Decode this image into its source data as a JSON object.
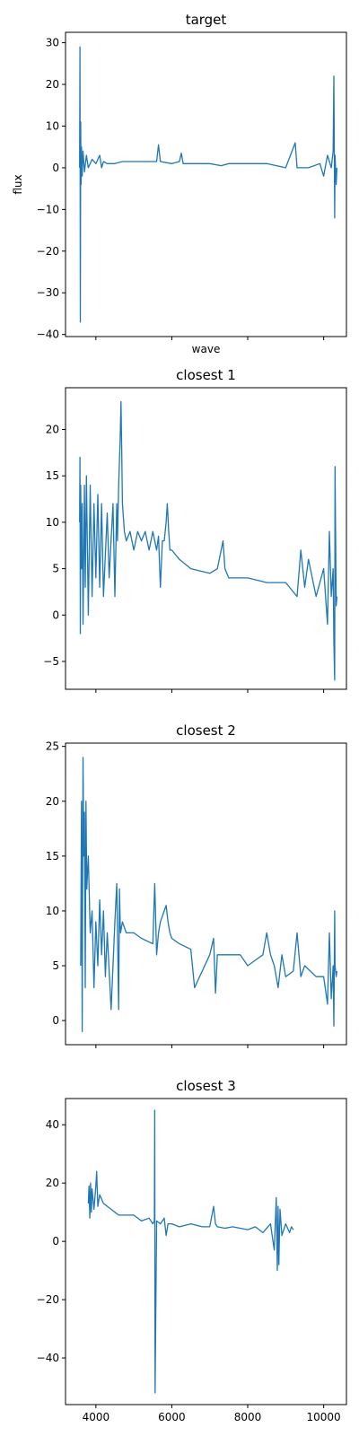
{
  "chart_data": [
    {
      "type": "line",
      "title": "target",
      "xlabel": "wave",
      "ylabel": "flux",
      "xlim": [
        3200,
        10600
      ],
      "ylim": [
        -40.5,
        32.5
      ],
      "xticks": [
        4000,
        6000,
        8000,
        10000
      ],
      "show_xtick_labels": false,
      "yticks": [
        -40,
        -30,
        -20,
        -10,
        0,
        10,
        20,
        30
      ],
      "ytick_labels": [
        "−40",
        "−30",
        "−20",
        "−10",
        "0",
        "10",
        "20",
        "30"
      ],
      "series": [
        {
          "color": "#1f77b4",
          "x": [
            3570,
            3580,
            3590,
            3600,
            3610,
            3620,
            3640,
            3660,
            3700,
            3750,
            3800,
            3900,
            4000,
            4100,
            4150,
            4200,
            4300,
            4500,
            4700,
            5000,
            5300,
            5600,
            5650,
            5700,
            6000,
            6200,
            6250,
            6300,
            6500,
            7000,
            7300,
            7500,
            8000,
            8500,
            9000,
            9250,
            9300,
            9600,
            9900,
            10000,
            10100,
            10200,
            10250,
            10270,
            10290,
            10300,
            10330,
            10350
          ],
          "y": [
            0,
            29,
            -37,
            11,
            -4,
            5,
            -2,
            4,
            -1,
            3,
            0,
            2,
            1,
            3,
            0,
            1.5,
            1,
            1,
            1.5,
            1.5,
            1.5,
            1.5,
            5.5,
            1.5,
            1,
            1.5,
            3.5,
            1,
            1,
            1,
            0.5,
            1,
            1,
            1,
            0,
            6,
            0,
            0,
            1,
            -2,
            3,
            0,
            4,
            22,
            -12,
            3,
            -4,
            0
          ]
        }
      ]
    },
    {
      "type": "line",
      "title": "closest 1",
      "xlabel": "",
      "ylabel": "",
      "xlim": [
        3200,
        10600
      ],
      "ylim": [
        -8,
        24.5
      ],
      "xticks": [
        4000,
        6000,
        8000,
        10000
      ],
      "show_xtick_labels": false,
      "yticks": [
        -5,
        0,
        5,
        10,
        15,
        20
      ],
      "ytick_labels": [
        "−5",
        "0",
        "5",
        "10",
        "15",
        "20"
      ],
      "series": [
        {
          "color": "#1f77b4",
          "x": [
            3570,
            3580,
            3590,
            3600,
            3620,
            3640,
            3660,
            3700,
            3720,
            3750,
            3800,
            3850,
            3900,
            3950,
            4000,
            4050,
            4100,
            4150,
            4200,
            4300,
            4350,
            4450,
            4500,
            4550,
            4570,
            4600,
            4640,
            4660,
            4680,
            4700,
            4750,
            4800,
            4900,
            5000,
            5100,
            5200,
            5300,
            5400,
            5500,
            5600,
            5650,
            5700,
            5750,
            5800,
            5850,
            5880,
            5920,
            5950,
            6000,
            6200,
            6500,
            7000,
            7200,
            7300,
            7350,
            7400,
            7500,
            8000,
            8500,
            9000,
            9300,
            9400,
            9500,
            9600,
            9800,
            10000,
            10100,
            10150,
            10200,
            10250,
            10270,
            10290,
            10300,
            10330,
            10350
          ],
          "y": [
            10,
            17,
            -2,
            14,
            5,
            12,
            -1,
            14,
            3,
            15,
            0,
            14,
            2,
            12,
            4,
            13,
            3,
            12,
            2,
            11,
            4,
            12,
            2,
            12,
            8,
            14,
            19,
            23,
            18,
            12,
            9,
            8,
            9,
            7,
            9,
            8,
            9,
            7,
            9,
            7,
            8.5,
            3,
            8,
            8,
            10,
            12,
            9,
            7,
            7,
            6,
            5,
            4.5,
            5,
            7,
            8,
            5,
            4,
            4,
            3.5,
            3.5,
            2,
            7,
            3,
            6,
            2,
            5,
            -1,
            9,
            2,
            5,
            -3,
            -7,
            16,
            1,
            2
          ]
        }
      ]
    },
    {
      "type": "line",
      "title": "closest 2",
      "xlabel": "",
      "ylabel": "",
      "xlim": [
        3200,
        10600
      ],
      "ylim": [
        -2.2,
        25.3
      ],
      "xticks": [
        4000,
        6000,
        8000,
        10000
      ],
      "show_xtick_labels": false,
      "yticks": [
        0,
        5,
        10,
        15,
        20,
        25
      ],
      "ytick_labels": [
        "0",
        "5",
        "10",
        "15",
        "20",
        "25"
      ],
      "series": [
        {
          "color": "#1f77b4",
          "x": [
            3600,
            3620,
            3640,
            3660,
            3680,
            3700,
            3720,
            3740,
            3760,
            3800,
            3850,
            3900,
            3950,
            4000,
            4050,
            4100,
            4150,
            4200,
            4250,
            4300,
            4400,
            4500,
            4550,
            4600,
            4620,
            4640,
            4650,
            4700,
            4800,
            5000,
            5200,
            5500,
            5550,
            5600,
            5650,
            5700,
            5800,
            5850,
            5900,
            5950,
            6000,
            6200,
            6500,
            6600,
            7000,
            7100,
            7150,
            7200,
            7500,
            7800,
            8000,
            8200,
            8400,
            8500,
            8600,
            8700,
            8800,
            8900,
            9000,
            9200,
            9300,
            9400,
            9500,
            9800,
            10000,
            10100,
            10150,
            10200,
            10250,
            10270,
            10290,
            10300,
            10330,
            10350
          ],
          "y": [
            5,
            20,
            -1,
            24,
            15,
            19,
            3,
            20,
            12,
            15,
            8,
            10,
            3,
            9,
            5,
            11,
            6,
            10,
            4,
            8,
            1,
            9,
            12.5,
            1,
            12,
            9,
            8,
            9,
            8,
            8,
            7.5,
            7,
            12.5,
            6,
            8,
            9,
            10,
            10.5,
            9,
            8,
            7.5,
            7,
            6.5,
            3,
            6,
            7.5,
            2.5,
            6,
            6,
            6,
            5,
            5.5,
            6,
            8,
            6,
            5,
            3,
            6,
            4,
            4.5,
            8,
            4,
            5,
            4,
            4,
            1.5,
            8,
            2,
            5,
            -0.5,
            10,
            5,
            4,
            4.5
          ]
        }
      ]
    },
    {
      "type": "line",
      "title": "closest 3",
      "xlabel": "",
      "ylabel": "",
      "xlim": [
        3200,
        10600
      ],
      "ylim": [
        -56,
        49
      ],
      "xticks": [
        4000,
        6000,
        8000,
        10000
      ],
      "show_xtick_labels": true,
      "xtick_labels": [
        "4000",
        "6000",
        "8000",
        "10000"
      ],
      "yticks": [
        -40,
        -20,
        0,
        20,
        40
      ],
      "ytick_labels": [
        "−40",
        "−20",
        "0",
        "20",
        "40"
      ],
      "series": [
        {
          "color": "#1f77b4",
          "x": [
            3800,
            3820,
            3840,
            3860,
            3880,
            3900,
            3950,
            4000,
            4020,
            4050,
            4100,
            4200,
            4400,
            4600,
            4800,
            5000,
            5200,
            5400,
            5500,
            5540,
            5550,
            5560,
            5600,
            5700,
            5800,
            5850,
            5900,
            6000,
            6200,
            6500,
            6800,
            7000,
            7100,
            7150,
            7200,
            7400,
            7600,
            8000,
            8200,
            8400,
            8600,
            8700,
            8750,
            8780,
            8800,
            8820,
            8850,
            8900,
            9000,
            9100,
            9150,
            9200
          ],
          "y": [
            13,
            19,
            8,
            20,
            10,
            18,
            11,
            19,
            24,
            12,
            16,
            13,
            11,
            9,
            9,
            9,
            7,
            8,
            6,
            7,
            45,
            -52,
            7,
            6,
            8,
            2,
            6,
            6,
            5,
            6,
            5,
            5,
            12,
            6,
            5,
            4.5,
            5,
            4,
            5,
            3,
            6,
            -3,
            15,
            -10,
            12,
            -8,
            11,
            2,
            6,
            3,
            5,
            4
          ]
        }
      ]
    }
  ]
}
